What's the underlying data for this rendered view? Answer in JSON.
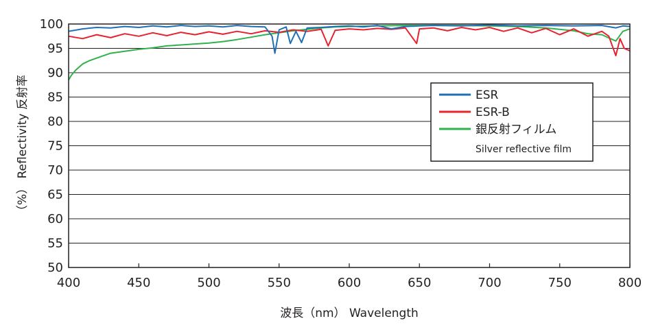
{
  "chart_data": {
    "type": "line",
    "xlabel": "波長（nm） Wavelength",
    "ylabel": "（%） Reflectivity 反射率",
    "xlim": [
      400,
      800
    ],
    "ylim": [
      50,
      100
    ],
    "xticks": [
      400,
      450,
      500,
      550,
      600,
      650,
      700,
      750,
      800
    ],
    "yticks": [
      50,
      55,
      60,
      65,
      70,
      75,
      80,
      85,
      90,
      95,
      100
    ],
    "grid": "horizontal",
    "legend_position": "right",
    "series": [
      {
        "name": "ESR",
        "color": "#1f6fb5",
        "x": [
          400,
          410,
          420,
          430,
          440,
          450,
          460,
          470,
          480,
          490,
          500,
          510,
          520,
          530,
          540,
          545,
          547,
          550,
          555,
          558,
          562,
          566,
          570,
          580,
          590,
          600,
          610,
          620,
          630,
          640,
          650,
          660,
          680,
          700,
          720,
          740,
          760,
          780,
          790,
          795,
          800
        ],
        "y": [
          98.5,
          99.0,
          99.3,
          99.2,
          99.5,
          99.3,
          99.6,
          99.4,
          99.7,
          99.5,
          99.6,
          99.4,
          99.7,
          99.5,
          99.4,
          97.5,
          94.0,
          98.8,
          99.4,
          96.0,
          98.5,
          96.2,
          99.2,
          99.3,
          99.5,
          99.6,
          99.4,
          99.7,
          99.0,
          99.5,
          99.6,
          99.7,
          99.6,
          99.8,
          99.6,
          99.7,
          99.6,
          99.7,
          99.2,
          99.6,
          99.5
        ]
      },
      {
        "name": "ESR-B",
        "color": "#e8222d",
        "x": [
          400,
          410,
          420,
          430,
          440,
          450,
          460,
          470,
          480,
          490,
          500,
          510,
          520,
          530,
          540,
          550,
          560,
          570,
          580,
          585,
          590,
          600,
          610,
          620,
          630,
          640,
          648,
          650,
          660,
          670,
          680,
          690,
          700,
          710,
          720,
          730,
          740,
          750,
          760,
          770,
          780,
          785,
          790,
          793,
          796,
          800
        ],
        "y": [
          97.5,
          97.0,
          97.8,
          97.2,
          98.0,
          97.5,
          98.2,
          97.6,
          98.3,
          97.8,
          98.4,
          97.9,
          98.5,
          98.0,
          98.6,
          98.3,
          98.8,
          98.5,
          98.9,
          95.5,
          98.7,
          99.0,
          98.8,
          99.1,
          98.9,
          99.2,
          96.0,
          99.0,
          99.2,
          98.6,
          99.3,
          98.8,
          99.3,
          98.5,
          99.2,
          98.2,
          99.1,
          97.8,
          99.0,
          97.5,
          98.5,
          97.5,
          93.5,
          97.0,
          95.0,
          94.5
        ]
      },
      {
        "name": "銀反射フィルム",
        "subname": "Silver reflective film",
        "color": "#2fb24c",
        "x": [
          400,
          402,
          405,
          410,
          415,
          420,
          425,
          430,
          440,
          450,
          460,
          470,
          480,
          490,
          500,
          510,
          520,
          530,
          540,
          550,
          560,
          570,
          580,
          590,
          600,
          620,
          640,
          660,
          680,
          700,
          720,
          740,
          760,
          770,
          780,
          790,
          795,
          800
        ],
        "y": [
          88.5,
          89.5,
          90.5,
          91.8,
          92.5,
          93.0,
          93.5,
          94.0,
          94.4,
          94.8,
          95.1,
          95.5,
          95.7,
          95.9,
          96.1,
          96.4,
          96.8,
          97.3,
          97.8,
          98.2,
          98.6,
          98.9,
          99.2,
          99.4,
          99.5,
          99.6,
          99.7,
          99.7,
          99.7,
          99.6,
          99.5,
          99.2,
          98.6,
          98.0,
          97.8,
          96.5,
          98.5,
          99.0
        ]
      }
    ]
  }
}
